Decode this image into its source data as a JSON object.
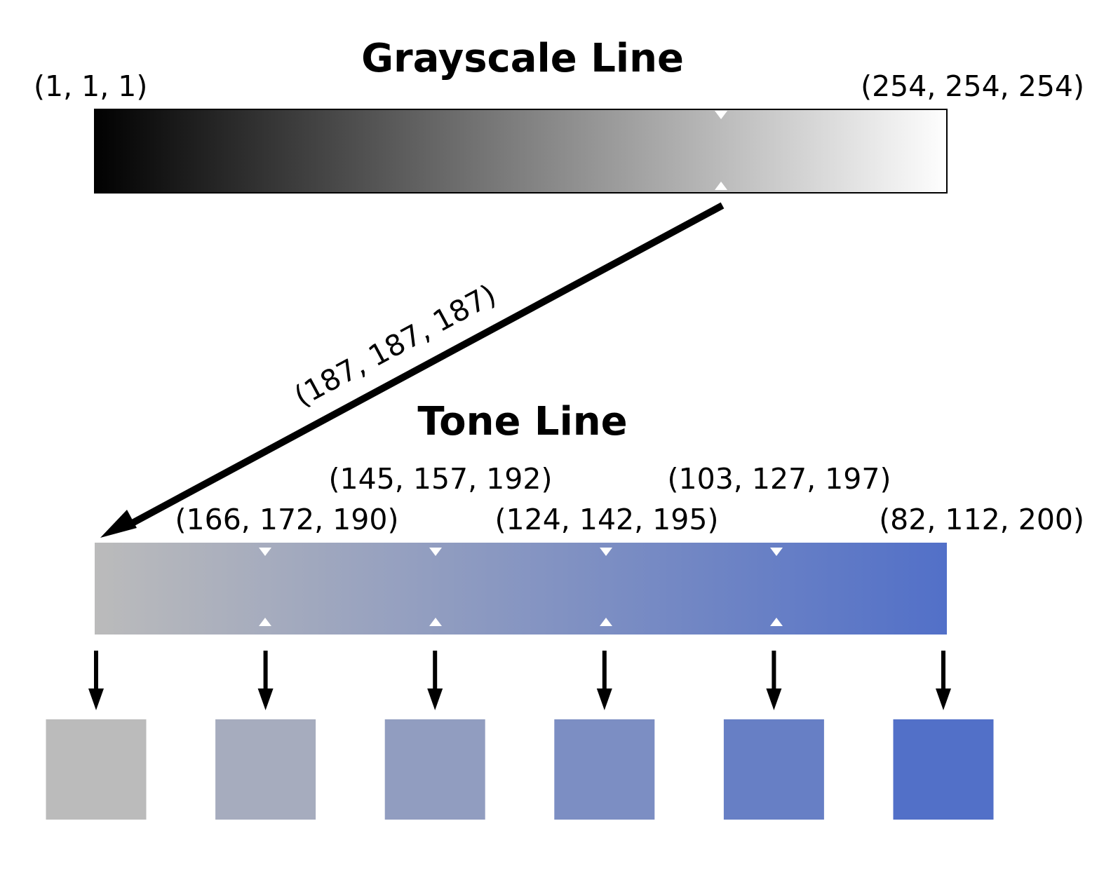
{
  "grayscale_line": {
    "title": "Grayscale Line",
    "start_label": "(1, 1, 1)",
    "end_label": "(254, 254, 254)",
    "start_color": "#010101",
    "end_color": "#fefefe",
    "marker_color": "#ffffff",
    "selected_position": 0.735
  },
  "mapping_arrow": {
    "label": "(187, 187, 187)",
    "color": "#000000"
  },
  "tone_line": {
    "title": "Tone Line",
    "start_color": "#bbbbbb",
    "end_color": "#5270c8",
    "stops": [
      {
        "label": "(166, 172, 190)",
        "color": "#a6acbe",
        "position": 0.2
      },
      {
        "label": "(145, 157, 192)",
        "color": "#919dc0",
        "position": 0.4
      },
      {
        "label": "(124, 142, 195)",
        "color": "#7c8ec3",
        "position": 0.6
      },
      {
        "label": "(103, 127, 197)",
        "color": "#677fc5",
        "position": 0.8
      },
      {
        "label": "(82, 112, 200)",
        "color": "#5270c8",
        "position": 1.0
      }
    ]
  },
  "swatches": [
    {
      "color": "#bbbbbb"
    },
    {
      "color": "#a6acbe"
    },
    {
      "color": "#919dc0"
    },
    {
      "color": "#7c8ec3"
    },
    {
      "color": "#677fc5"
    },
    {
      "color": "#5270c8"
    }
  ]
}
